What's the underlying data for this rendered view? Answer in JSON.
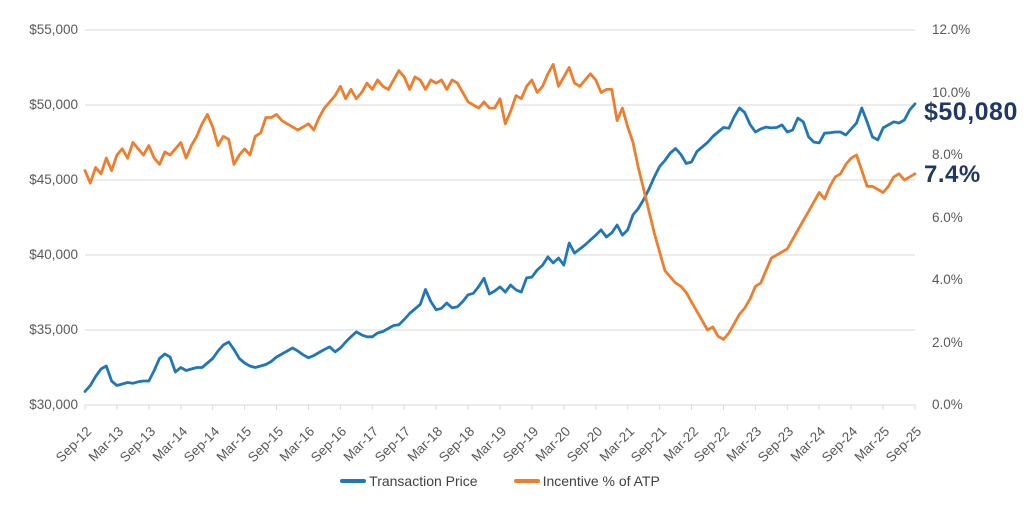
{
  "chart_data": {
    "type": "line",
    "title": "",
    "frequency": "monthly",
    "x_start": "Sep-12",
    "x_end": "Sep-25",
    "x_tick_labels": [
      "Sep-12",
      "Mar-13",
      "Sep-13",
      "Mar-14",
      "Sep-14",
      "Mar-15",
      "Sep-15",
      "Mar-16",
      "Sep-16",
      "Mar-17",
      "Sep-17",
      "Mar-18",
      "Sep-18",
      "Mar-19",
      "Sep-19",
      "Mar-20",
      "Sep-20",
      "Mar-21",
      "Sep-21",
      "Mar-22",
      "Sep-22",
      "Mar-23",
      "Sep-23",
      "Mar-24",
      "Sep-24",
      "Mar-25",
      "Sep-25"
    ],
    "grid": "horizontal",
    "legend_position": "bottom-center",
    "axis_text_color": "#595959",
    "gridline_color": "#d9d9d9",
    "left_axis": {
      "min": 30000,
      "max": 55000,
      "step": 5000,
      "tick_labels_top_to_bottom": [
        "$55,000",
        "$50,000",
        "$45,000",
        "$40,000",
        "$35,000",
        "$30,000"
      ]
    },
    "right_axis": {
      "min": 0,
      "max": 12,
      "step": 2,
      "tick_labels_top_to_bottom": [
        "12.0%",
        "10.0%",
        "8.0%",
        "6.0%",
        "4.0%",
        "2.0%",
        "0.0%"
      ]
    },
    "series": [
      {
        "name": "Transaction Price",
        "color": "#2176b7",
        "axis": "left",
        "values": [
          30900,
          31300,
          31900,
          32400,
          32600,
          31600,
          31300,
          31400,
          31500,
          31450,
          31550,
          31600,
          31600,
          32300,
          33100,
          33400,
          33200,
          32200,
          32500,
          32300,
          32400,
          32500,
          32500,
          32800,
          33100,
          33600,
          34000,
          34200,
          33700,
          33100,
          32800,
          32600,
          32500,
          32600,
          32700,
          32900,
          33200,
          33400,
          33600,
          33800,
          33600,
          33350,
          33150,
          33300,
          33500,
          33700,
          33870,
          33550,
          33800,
          34200,
          34550,
          34870,
          34670,
          34550,
          34550,
          34800,
          34900,
          35100,
          35300,
          35350,
          35700,
          36100,
          36400,
          36700,
          37700,
          36900,
          36350,
          36450,
          36800,
          36470,
          36550,
          36900,
          37350,
          37450,
          37900,
          38450,
          37400,
          37600,
          37870,
          37530,
          38000,
          37670,
          37530,
          38470,
          38530,
          39000,
          39330,
          39870,
          39470,
          39800,
          39330,
          40800,
          40130,
          40400,
          40670,
          41000,
          41330,
          41670,
          41200,
          41470,
          42000,
          41330,
          41670,
          42670,
          43100,
          43700,
          44400,
          45200,
          45900,
          46300,
          46800,
          47100,
          46700,
          46100,
          46200,
          46900,
          47200,
          47500,
          47900,
          48200,
          48500,
          48450,
          49200,
          49800,
          49500,
          48700,
          48200,
          48400,
          48530,
          48470,
          48500,
          48670,
          48200,
          48330,
          49130,
          48870,
          47870,
          47530,
          47470,
          48130,
          48150,
          48200,
          48200,
          48000,
          48400,
          48800,
          49800,
          48870,
          47870,
          47670,
          48470,
          48670,
          48870,
          48800,
          49000,
          49670,
          50080
        ]
      },
      {
        "name": "Incentive % of ATP",
        "color": "#ee7e2e",
        "axis": "right",
        "values": [
          7.5,
          7.1,
          7.6,
          7.4,
          7.9,
          7.5,
          8.0,
          8.2,
          7.9,
          8.4,
          8.2,
          8.0,
          8.3,
          7.9,
          7.7,
          8.1,
          8.0,
          8.2,
          8.4,
          7.9,
          8.3,
          8.6,
          9.0,
          9.3,
          8.9,
          8.3,
          8.6,
          8.5,
          7.7,
          8.0,
          8.2,
          8.0,
          8.6,
          8.7,
          9.2,
          9.2,
          9.3,
          9.1,
          9.0,
          8.9,
          8.8,
          8.9,
          9.0,
          8.8,
          9.2,
          9.5,
          9.7,
          9.9,
          10.2,
          9.8,
          10.1,
          9.8,
          10.0,
          10.3,
          10.1,
          10.4,
          10.2,
          10.1,
          10.4,
          10.7,
          10.5,
          10.1,
          10.5,
          10.4,
          10.1,
          10.4,
          10.3,
          10.4,
          10.1,
          10.4,
          10.3,
          10.0,
          9.7,
          9.6,
          9.5,
          9.7,
          9.5,
          9.5,
          9.8,
          9.0,
          9.4,
          9.9,
          9.8,
          10.2,
          10.4,
          10.0,
          10.2,
          10.6,
          10.9,
          10.2,
          10.5,
          10.8,
          10.3,
          10.2,
          10.4,
          10.6,
          10.4,
          10.0,
          10.1,
          10.1,
          9.1,
          9.5,
          8.9,
          8.4,
          7.6,
          6.9,
          6.2,
          5.5,
          4.9,
          4.3,
          4.1,
          3.9,
          3.8,
          3.6,
          3.3,
          3.0,
          2.7,
          2.4,
          2.5,
          2.2,
          2.1,
          2.3,
          2.6,
          2.9,
          3.1,
          3.4,
          3.8,
          3.9,
          4.3,
          4.7,
          4.8,
          4.9,
          5.0,
          5.3,
          5.6,
          5.9,
          6.2,
          6.5,
          6.8,
          6.6,
          7.0,
          7.3,
          7.4,
          7.7,
          7.9,
          8.0,
          7.5,
          7.0,
          7.0,
          6.9,
          6.8,
          7.0,
          7.3,
          7.4,
          7.2,
          7.3,
          7.4
        ]
      }
    ],
    "callouts": {
      "price": "$50,080",
      "incentive": "7.4%",
      "color": "#1f3864"
    },
    "legend": [
      {
        "label": "Transaction Price",
        "color": "#2176b7"
      },
      {
        "label": "Incentive % of ATP",
        "color": "#ee7e2e"
      }
    ]
  }
}
